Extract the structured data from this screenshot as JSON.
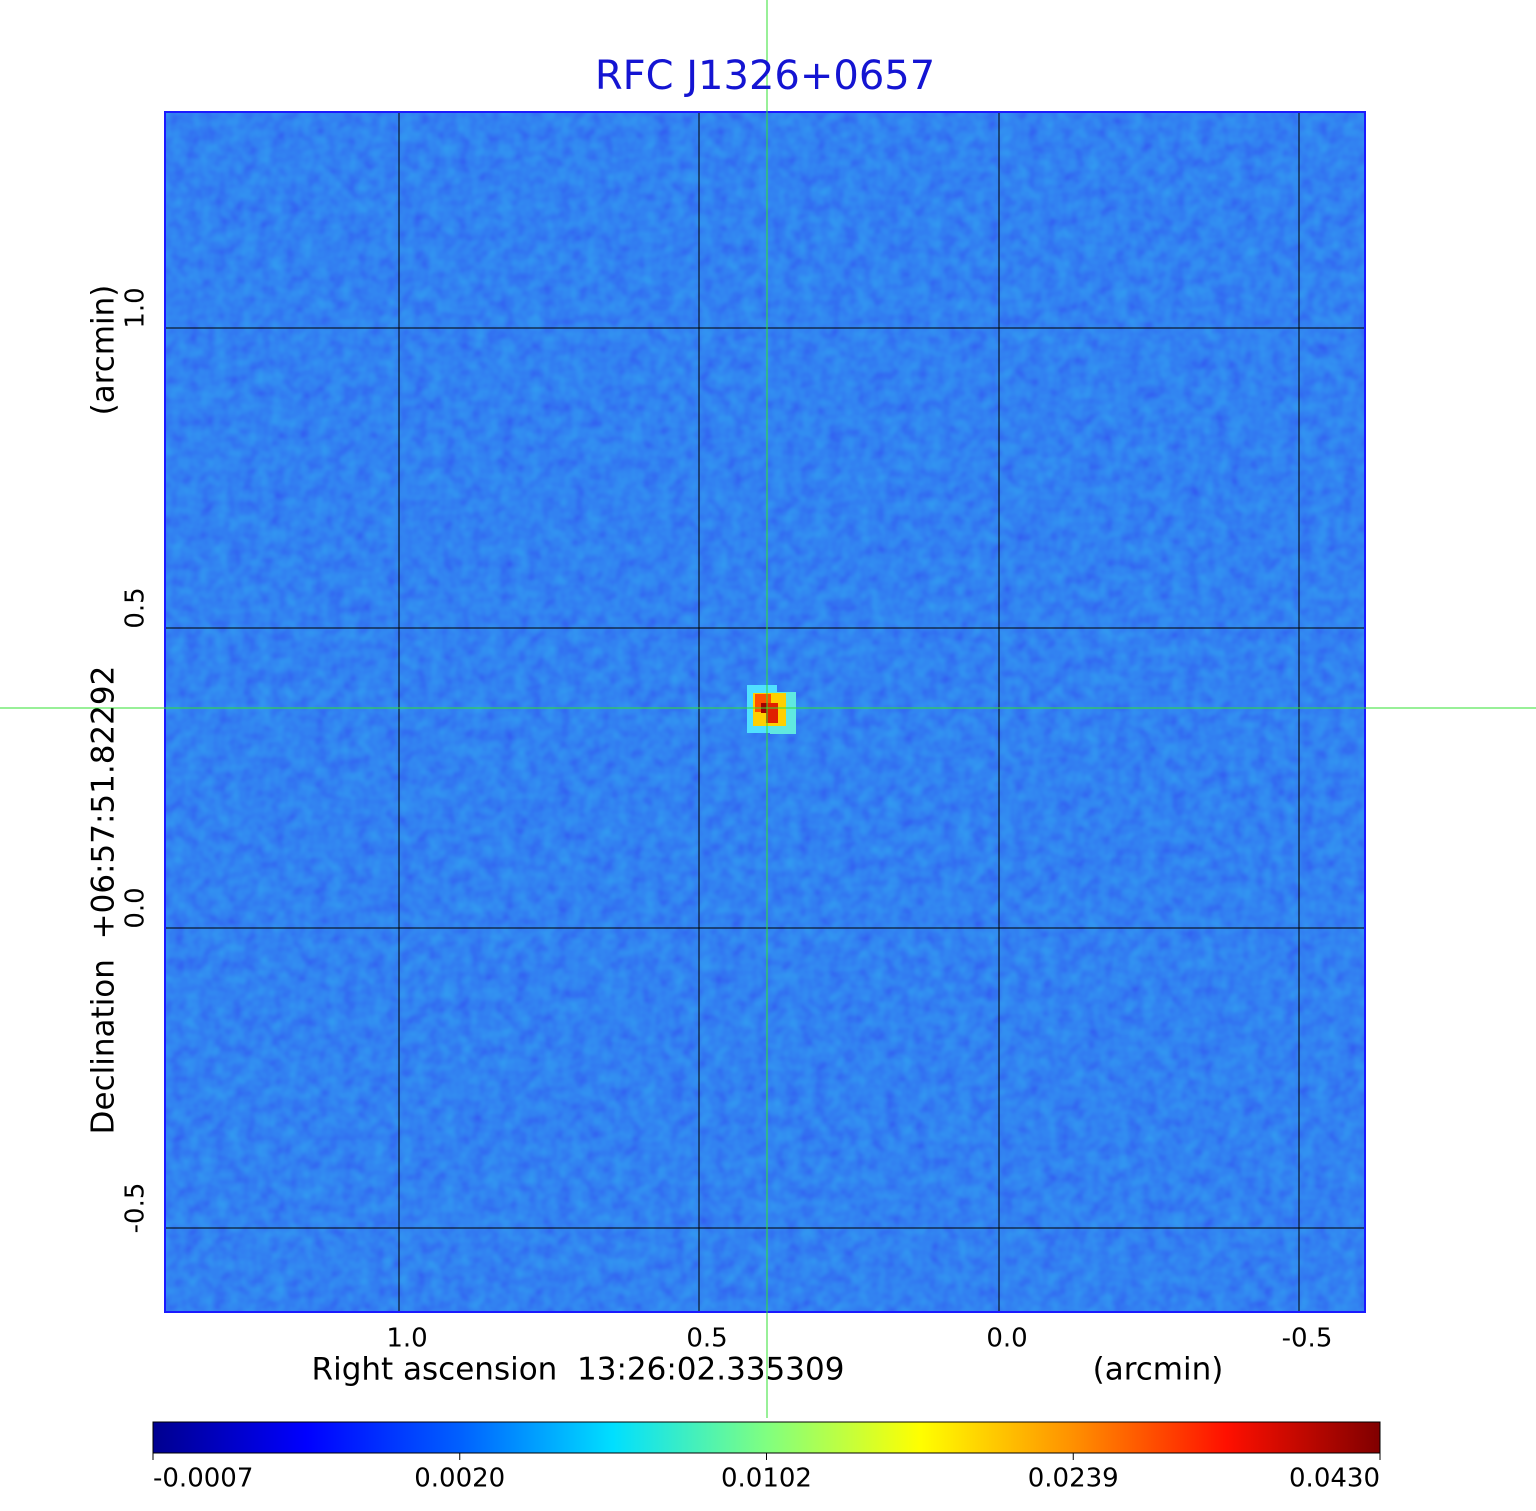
{
  "chart_data": {
    "type": "image",
    "title": "RFC J1326+0657",
    "xlabel": "Right ascension  13:26:02.335309",
    "xunit": "(arcmin)",
    "ylabel": "Declination  +06:57:51.82292",
    "yunit": "(arcmin)",
    "xlim": [
      1.39,
      -0.61
    ],
    "ylim": [
      -0.64,
      1.36
    ],
    "xticks": [
      {
        "value": 1.0,
        "label": "1.0"
      },
      {
        "value": 0.5,
        "label": "0.5"
      },
      {
        "value": 0.0,
        "label": "0.0"
      },
      {
        "value": -0.5,
        "label": "-0.5"
      }
    ],
    "yticks": [
      {
        "value": 1.0,
        "label": "1.0"
      },
      {
        "value": 0.5,
        "label": "0.5"
      },
      {
        "value": 0.0,
        "label": "0.0"
      },
      {
        "value": -0.5,
        "label": "-0.5"
      }
    ],
    "grid": true,
    "colormap": "jet",
    "cticks": [
      -0.0007,
      {
        "value": 0.002,
        "label": "0.0020"
      },
      0.0102,
      0.0239,
      {
        "value": 0.043,
        "label": "0.0430"
      }
    ]
  }
}
